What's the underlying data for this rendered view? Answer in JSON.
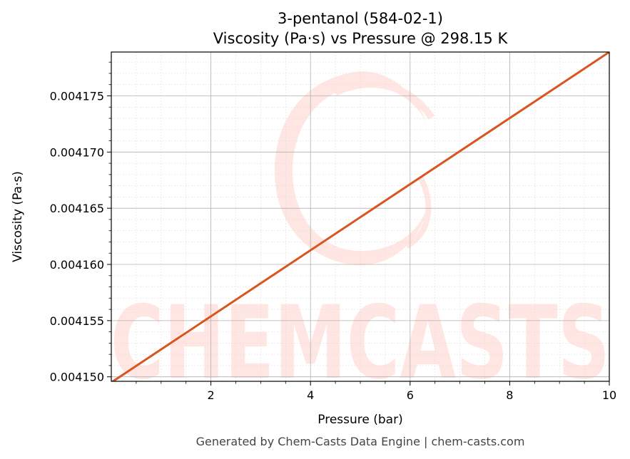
{
  "chart_data": {
    "type": "line",
    "title": "3-pentanol (584-02-1)",
    "subtitle": "Viscosity (Pa·s) vs Pressure @ 298.15 K",
    "xlabel": "Pressure (bar)",
    "ylabel": "Viscosity (Pa·s)",
    "xlim": [
      0.0,
      10.0
    ],
    "ylim": [
      0.0041496,
      0.0041789
    ],
    "xticks": [
      2,
      4,
      6,
      8,
      10
    ],
    "xtick_labels": [
      "2",
      "4",
      "6",
      "8",
      "10"
    ],
    "yticks": [
      0.00415,
      0.004155,
      0.00416,
      0.004165,
      0.00417,
      0.004175
    ],
    "ytick_labels": [
      "0.004150",
      "0.004155",
      "0.004160",
      "0.004165",
      "0.004170",
      "0.004175"
    ],
    "grid": true,
    "minor_grid": true,
    "series": [
      {
        "color": "#d9541e",
        "x": [
          0.0,
          10.0
        ],
        "y": [
          0.0041495,
          0.0041789
        ]
      }
    ]
  },
  "watermark": {
    "text": "CHEMCASTS",
    "color": "#ffe6e2"
  },
  "footer": "Generated by Chem-Casts Data Engine | chem-casts.com"
}
